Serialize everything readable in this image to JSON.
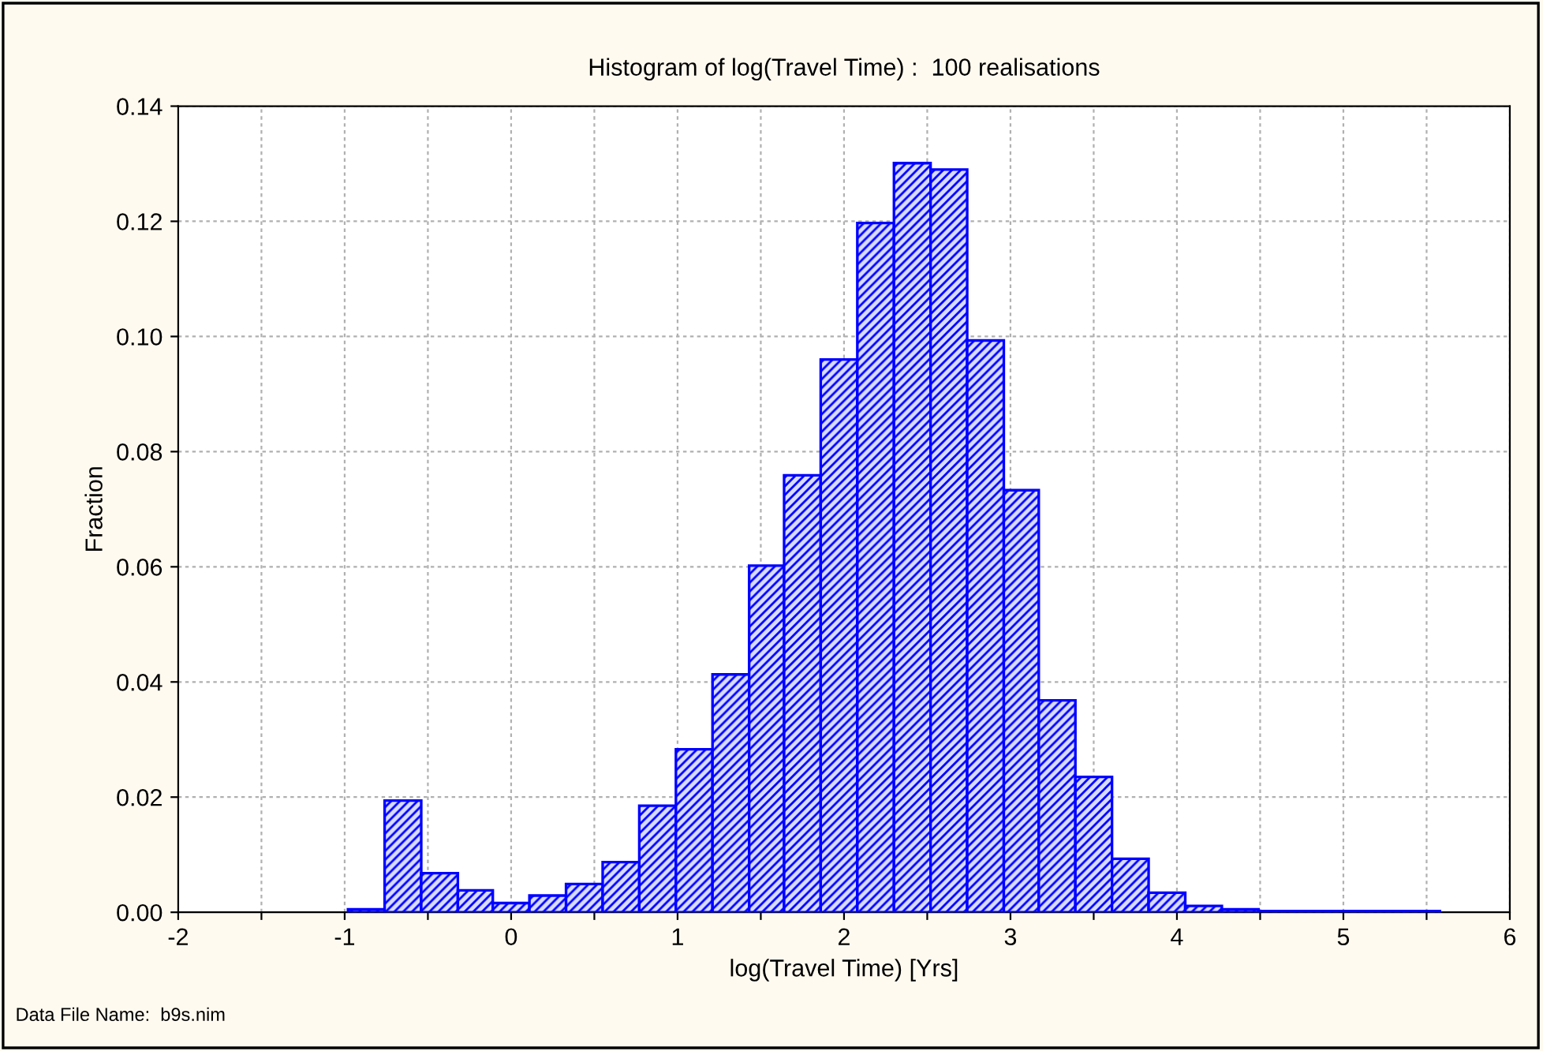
{
  "chart_data": {
    "type": "histogram",
    "title": "Histogram of log(Travel Time) :  100 realisations",
    "xlabel": "log(Travel Time) [Yrs]",
    "ylabel": "Fraction",
    "annotations": [
      "Data File Name:  b9s.nim"
    ],
    "bins": [
      -0.98,
      -0.76,
      -0.54,
      -0.32,
      -0.11,
      0.11,
      0.33,
      0.55,
      0.77,
      0.99,
      1.21,
      1.43,
      1.64,
      1.86,
      2.08,
      2.3,
      2.52,
      2.74,
      2.96,
      3.17,
      3.39,
      3.61,
      3.83,
      4.05,
      4.27,
      4.49,
      4.71,
      4.92,
      5.14,
      5.36,
      5.58
    ],
    "values": [
      0.0005,
      0.0194,
      0.0068,
      0.0038,
      0.0016,
      0.0029,
      0.0049,
      0.0087,
      0.0185,
      0.0283,
      0.0413,
      0.0602,
      0.0759,
      0.096,
      0.1197,
      0.1301,
      0.129,
      0.0993,
      0.0733,
      0.0368,
      0.0235,
      0.0093,
      0.0034,
      0.0011,
      0.0005,
      0.0002,
      0.0002,
      0.0002,
      0.0002,
      0.0002
    ],
    "color": "#0000ff",
    "xlim": [
      -2,
      6
    ],
    "ylim": [
      0,
      0.14
    ],
    "xticks": [
      -2,
      {
        "value": -1.5,
        "label": null
      },
      -1,
      {
        "value": -0.5,
        "label": null
      },
      0,
      {
        "value": 0.5,
        "label": null
      },
      1,
      {
        "value": 1.5,
        "label": null
      },
      2,
      {
        "value": 2.5,
        "label": null
      },
      3,
      {
        "value": 3.5,
        "label": null
      },
      4,
      {
        "value": 4.5,
        "label": null
      },
      5,
      {
        "value": 5.5,
        "label": null
      },
      6
    ],
    "yticks": [
      {
        "value": 0,
        "label": "0.00"
      },
      {
        "value": 0.02,
        "label": "0.02"
      },
      {
        "value": 0.04,
        "label": "0.04"
      },
      {
        "value": 0.06,
        "label": "0.06"
      },
      {
        "value": 0.08,
        "label": "0.08"
      },
      {
        "value": 0.1,
        "label": "0.10"
      },
      {
        "value": 0.12,
        "label": "0.12"
      },
      {
        "value": 0.14,
        "label": "0.14"
      }
    ],
    "grid": true
  }
}
